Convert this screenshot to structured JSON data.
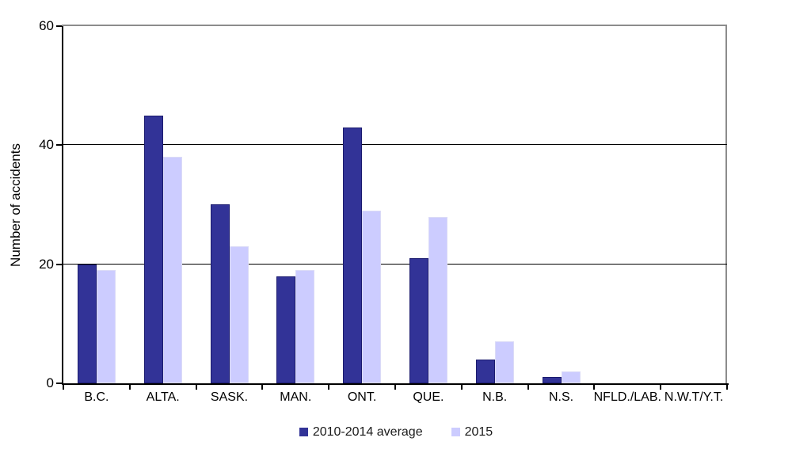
{
  "chart_data": {
    "type": "bar",
    "categories": [
      "B.C.",
      "ALTA.",
      "SASK.",
      "MAN.",
      "ONT.",
      "QUE.",
      "N.B.",
      "N.S.",
      "NFLD./LAB.",
      "N.W.T/Y.T."
    ],
    "series": [
      {
        "name": "2010-2014 average",
        "color": "#323397",
        "border_color": "#1B1B6F",
        "values": [
          20,
          45,
          30,
          18,
          43,
          21,
          4,
          1,
          0,
          0
        ]
      },
      {
        "name": "2015",
        "color": "#CCCCFF",
        "border_color": "#DBDBF7",
        "values": [
          19,
          38,
          23,
          19,
          29,
          28,
          7,
          2,
          0,
          0
        ]
      }
    ],
    "title": "",
    "xlabel": "",
    "ylabel": "Number of accidents",
    "ylim": [
      0,
      60
    ],
    "yticks": [
      0,
      20,
      40,
      60
    ],
    "grid": "horizontal",
    "legend_position": "bottom-center"
  },
  "frame": {
    "axis_color": "#000000",
    "outer_border_color": "#8C8C8C",
    "background": "#FFFFFF"
  }
}
